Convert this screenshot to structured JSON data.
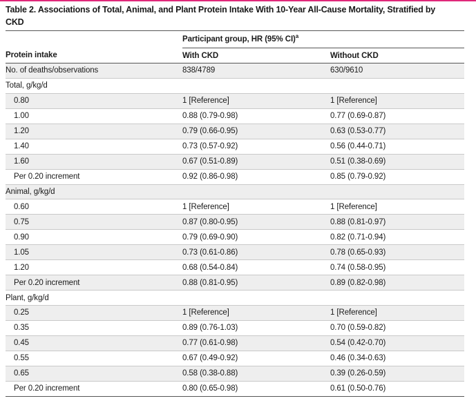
{
  "caption": "Table 2. Associations of Total, Animal, and Plant Protein Intake With 10-Year All-Cause Mortality, Stratified by CKD",
  "header": {
    "group_label": "Participant group, HR (95% CI)",
    "group_superscript": "a",
    "col1": "Protein intake",
    "col2": "With CKD",
    "col3": "Without CKD"
  },
  "deaths_row": {
    "label": "No. of deaths/observations",
    "with_ckd": "838/4789",
    "without_ckd": "630/9610"
  },
  "sections": [
    {
      "title": "Total, g/kg/d",
      "rows": [
        {
          "label": "0.80",
          "with_ckd": "1 [Reference]",
          "without_ckd": "1 [Reference]"
        },
        {
          "label": "1.00",
          "with_ckd": "0.88 (0.79-0.98)",
          "without_ckd": "0.77 (0.69-0.87)"
        },
        {
          "label": "1.20",
          "with_ckd": "0.79 (0.66-0.95)",
          "without_ckd": "0.63 (0.53-0.77)"
        },
        {
          "label": "1.40",
          "with_ckd": "0.73 (0.57-0.92)",
          "without_ckd": "0.56 (0.44-0.71)"
        },
        {
          "label": "1.60",
          "with_ckd": "0.67 (0.51-0.89)",
          "without_ckd": "0.51 (0.38-0.69)"
        },
        {
          "label": "Per 0.20 increment",
          "with_ckd": "0.92 (0.86-0.98)",
          "without_ckd": "0.85 (0.79-0.92)"
        }
      ]
    },
    {
      "title": "Animal, g/kg/d",
      "rows": [
        {
          "label": "0.60",
          "with_ckd": "1 [Reference]",
          "without_ckd": "1 [Reference]"
        },
        {
          "label": "0.75",
          "with_ckd": "0.87 (0.80-0.95)",
          "without_ckd": "0.88 (0.81-0.97)"
        },
        {
          "label": "0.90",
          "with_ckd": "0.79 (0.69-0.90)",
          "without_ckd": "0.82 (0.71-0.94)"
        },
        {
          "label": "1.05",
          "with_ckd": "0.73 (0.61-0.86)",
          "without_ckd": "0.78 (0.65-0.93)"
        },
        {
          "label": "1.20",
          "with_ckd": "0.68 (0.54-0.84)",
          "without_ckd": "0.74 (0.58-0.95)"
        },
        {
          "label": "Per 0.20 increment",
          "with_ckd": "0.88 (0.81-0.95)",
          "without_ckd": "0.89 (0.82-0.98)"
        }
      ]
    },
    {
      "title": "Plant, g/kg/d",
      "rows": [
        {
          "label": "0.25",
          "with_ckd": "1 [Reference]",
          "without_ckd": "1 [Reference]"
        },
        {
          "label": "0.35",
          "with_ckd": "0.89 (0.76-1.03)",
          "without_ckd": "0.70 (0.59-0.82)"
        },
        {
          "label": "0.45",
          "with_ckd": "0.77 (0.61-0.98)",
          "without_ckd": "0.54 (0.42-0.70)"
        },
        {
          "label": "0.55",
          "with_ckd": "0.67 (0.49-0.92)",
          "without_ckd": "0.46 (0.34-0.63)"
        },
        {
          "label": "0.65",
          "with_ckd": "0.58 (0.38-0.88)",
          "without_ckd": "0.39 (0.26-0.59)"
        },
        {
          "label": "Per 0.20 increment",
          "with_ckd": "0.80 (0.65-0.98)",
          "without_ckd": "0.61 (0.50-0.76)"
        }
      ]
    }
  ],
  "colors": {
    "accent": "#e0287a",
    "shade": "#eeeeee",
    "rule": "#555555"
  }
}
